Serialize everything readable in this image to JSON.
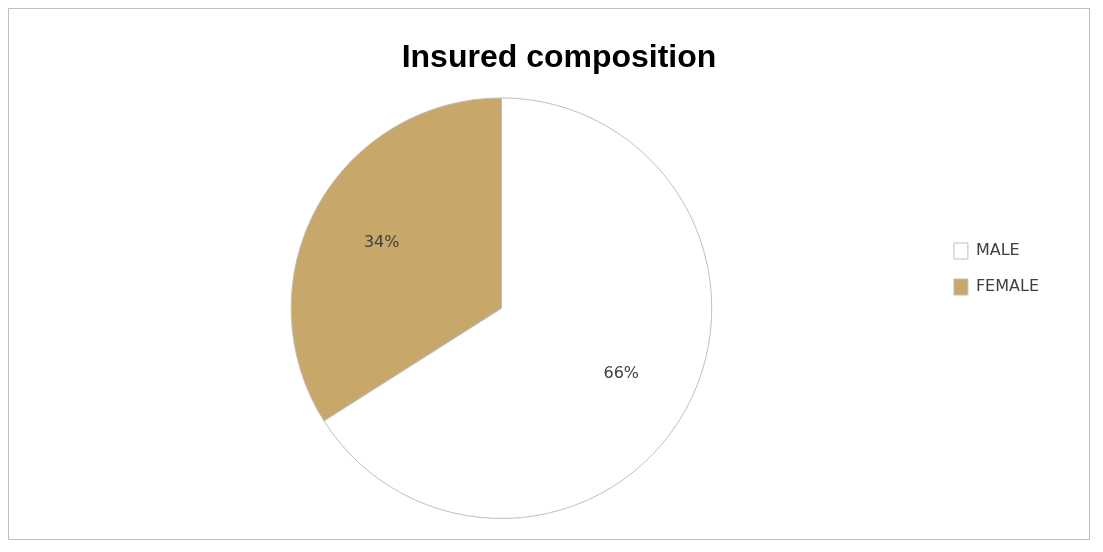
{
  "chart_data": {
    "type": "pie",
    "title": "Insured composition",
    "categories": [
      "MALE",
      "FEMALE"
    ],
    "values": [
      66,
      34
    ],
    "colors": [
      "#ffffff",
      "#c8a86a"
    ],
    "value_labels": [
      "66%",
      "34%"
    ],
    "legend": "right"
  }
}
